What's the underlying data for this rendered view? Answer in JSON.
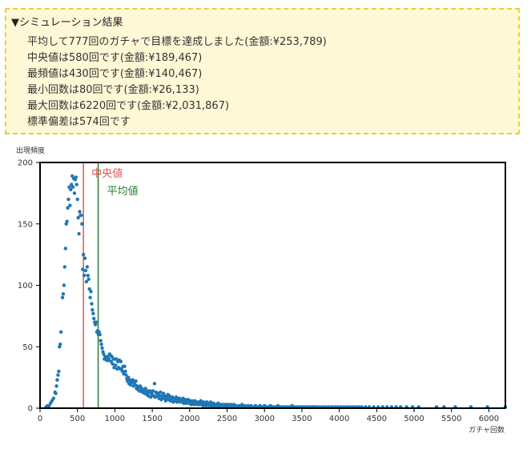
{
  "summary": {
    "title": "▼シミュレーション結果",
    "lines": [
      "平均して777回のガチャで目標を達成しました(金額:¥253,789)",
      "中央値は580回です(金額:¥189,467)",
      "最頻値は430回です(金額:¥140,467)",
      "最小回数は80回です(金額:¥26,133)",
      "最大回数は6220回です(金額:¥2,031,867)",
      "標準偏差は574回です"
    ]
  },
  "chart_data": {
    "type": "scatter",
    "title": "",
    "xlabel": "ガチャ回数",
    "ylabel": "出現頻度",
    "xlim": [
      0,
      6220
    ],
    "ylim": [
      0,
      200
    ],
    "xticks": [
      0,
      500,
      1000,
      1500,
      2000,
      2500,
      3000,
      3500,
      4000,
      4500,
      5000,
      5500,
      6000
    ],
    "yticks": [
      0,
      50,
      100,
      150,
      200
    ],
    "colors": {
      "points": "#1f77b4",
      "median": "#e0565b",
      "mean": "#2e7d32"
    },
    "reference_lines": [
      {
        "label": "中央値",
        "x": 580,
        "color": "#e0565b"
      },
      {
        "label": "平均値",
        "x": 777,
        "color": "#2e7d32"
      }
    ],
    "series": [
      {
        "points": [
          [
            80,
            1
          ],
          [
            100,
            2
          ],
          [
            120,
            2
          ],
          [
            140,
            4
          ],
          [
            160,
            6
          ],
          [
            180,
            8
          ],
          [
            200,
            13
          ],
          [
            210,
            12
          ],
          [
            220,
            18
          ],
          [
            230,
            23
          ],
          [
            240,
            27
          ],
          [
            250,
            30
          ],
          [
            260,
            50
          ],
          [
            270,
            52
          ],
          [
            280,
            62
          ],
          [
            300,
            90
          ],
          [
            310,
            93
          ],
          [
            320,
            100
          ],
          [
            330,
            115
          ],
          [
            340,
            130
          ],
          [
            350,
            150
          ],
          [
            360,
            152
          ],
          [
            370,
            163
          ],
          [
            380,
            170
          ],
          [
            390,
            180
          ],
          [
            400,
            165
          ],
          [
            410,
            178
          ],
          [
            420,
            182
          ],
          [
            430,
            189
          ],
          [
            440,
            180
          ],
          [
            450,
            187
          ],
          [
            460,
            175
          ],
          [
            470,
            186
          ],
          [
            480,
            188
          ],
          [
            490,
            182
          ],
          [
            500,
            170
          ],
          [
            510,
            155
          ],
          [
            520,
            142
          ],
          [
            530,
            160
          ],
          [
            540,
            157
          ],
          [
            550,
            157
          ],
          [
            560,
            150
          ],
          [
            570,
            113
          ],
          [
            580,
            125
          ],
          [
            590,
            108
          ],
          [
            600,
            122
          ],
          [
            610,
            112
          ],
          [
            620,
            103
          ],
          [
            630,
            115
          ],
          [
            640,
            108
          ],
          [
            650,
            105
          ],
          [
            660,
            97
          ],
          [
            670,
            90
          ],
          [
            680,
            95
          ],
          [
            690,
            85
          ],
          [
            700,
            80
          ],
          [
            710,
            77
          ],
          [
            720,
            73
          ],
          [
            730,
            70
          ],
          [
            740,
            68
          ],
          [
            750,
            70
          ],
          [
            760,
            62
          ],
          [
            770,
            63
          ],
          [
            780,
            60
          ],
          [
            790,
            62
          ],
          [
            800,
            60
          ],
          [
            810,
            55
          ],
          [
            820,
            52
          ],
          [
            830,
            49
          ],
          [
            840,
            46
          ],
          [
            850,
            44
          ],
          [
            860,
            40
          ],
          [
            870,
            42
          ],
          [
            880,
            40
          ],
          [
            890,
            39
          ],
          [
            900,
            42
          ],
          [
            910,
            39
          ],
          [
            920,
            40
          ],
          [
            930,
            44
          ],
          [
            940,
            43
          ],
          [
            950,
            38
          ],
          [
            960,
            42
          ],
          [
            970,
            36
          ],
          [
            980,
            40
          ],
          [
            990,
            33
          ],
          [
            1000,
            40
          ],
          [
            1010,
            35
          ],
          [
            1020,
            40
          ],
          [
            1030,
            32
          ],
          [
            1040,
            38
          ],
          [
            1050,
            33
          ],
          [
            1060,
            39
          ],
          [
            1070,
            32
          ],
          [
            1080,
            38
          ],
          [
            1090,
            32
          ],
          [
            1100,
            30
          ],
          [
            1110,
            34
          ],
          [
            1120,
            28
          ],
          [
            1130,
            34
          ],
          [
            1140,
            30
          ],
          [
            1150,
            27
          ],
          [
            1160,
            24
          ],
          [
            1170,
            22
          ],
          [
            1180,
            25
          ],
          [
            1190,
            20
          ],
          [
            1200,
            23
          ],
          [
            1210,
            19
          ],
          [
            1220,
            22
          ],
          [
            1230,
            21
          ],
          [
            1240,
            23
          ],
          [
            1250,
            18
          ],
          [
            1260,
            21
          ],
          [
            1270,
            19
          ],
          [
            1280,
            22
          ],
          [
            1290,
            16
          ],
          [
            1300,
            18
          ],
          [
            1310,
            15
          ],
          [
            1320,
            17
          ],
          [
            1330,
            14
          ],
          [
            1340,
            18
          ],
          [
            1350,
            14
          ],
          [
            1360,
            16
          ],
          [
            1370,
            13
          ],
          [
            1380,
            15
          ],
          [
            1390,
            14
          ],
          [
            1400,
            12
          ],
          [
            1410,
            16
          ],
          [
            1420,
            13
          ],
          [
            1430,
            11
          ],
          [
            1440,
            14
          ],
          [
            1450,
            10
          ],
          [
            1460,
            13
          ],
          [
            1470,
            14
          ],
          [
            1480,
            9
          ],
          [
            1490,
            12
          ],
          [
            1500,
            11
          ],
          [
            1510,
            14
          ],
          [
            1520,
            10
          ],
          [
            1530,
            20
          ],
          [
            1540,
            9
          ],
          [
            1550,
            13
          ],
          [
            1560,
            12
          ],
          [
            1570,
            10
          ],
          [
            1580,
            12
          ],
          [
            1590,
            8
          ],
          [
            1600,
            10
          ],
          [
            1610,
            13
          ],
          [
            1620,
            7
          ],
          [
            1630,
            10
          ],
          [
            1640,
            9
          ],
          [
            1650,
            12
          ],
          [
            1660,
            8
          ],
          [
            1670,
            10
          ],
          [
            1680,
            6
          ],
          [
            1690,
            9
          ],
          [
            1700,
            8
          ],
          [
            1710,
            11
          ],
          [
            1720,
            7
          ],
          [
            1730,
            10
          ],
          [
            1740,
            6
          ],
          [
            1750,
            8
          ],
          [
            1760,
            7
          ],
          [
            1770,
            9
          ],
          [
            1780,
            5
          ],
          [
            1790,
            8
          ],
          [
            1800,
            7
          ],
          [
            1810,
            6
          ],
          [
            1820,
            9
          ],
          [
            1830,
            5
          ],
          [
            1840,
            7
          ],
          [
            1850,
            6
          ],
          [
            1860,
            8
          ],
          [
            1870,
            5
          ],
          [
            1880,
            7
          ],
          [
            1890,
            6
          ],
          [
            1900,
            5
          ],
          [
            1910,
            8
          ],
          [
            1920,
            4
          ],
          [
            1930,
            6
          ],
          [
            1940,
            7
          ],
          [
            1950,
            4
          ],
          [
            1960,
            6
          ],
          [
            1970,
            5
          ],
          [
            1980,
            7
          ],
          [
            1990,
            4
          ],
          [
            2000,
            6
          ],
          [
            2010,
            5
          ],
          [
            2020,
            3
          ],
          [
            2030,
            6
          ],
          [
            2040,
            4
          ],
          [
            2050,
            5
          ],
          [
            2060,
            3
          ],
          [
            2070,
            6
          ],
          [
            2080,
            4
          ],
          [
            2090,
            5
          ],
          [
            2100,
            3
          ],
          [
            2110,
            4
          ],
          [
            2120,
            5
          ],
          [
            2130,
            3
          ],
          [
            2140,
            4
          ],
          [
            2150,
            6
          ],
          [
            2160,
            3
          ],
          [
            2170,
            4
          ],
          [
            2180,
            2
          ],
          [
            2190,
            5
          ],
          [
            2200,
            3
          ],
          [
            2210,
            4
          ],
          [
            2220,
            2
          ],
          [
            2230,
            5
          ],
          [
            2240,
            3
          ],
          [
            2250,
            4
          ],
          [
            2260,
            2
          ],
          [
            2270,
            3
          ],
          [
            2280,
            5
          ],
          [
            2290,
            2
          ],
          [
            2300,
            3
          ],
          [
            2310,
            2
          ],
          [
            2320,
            4
          ],
          [
            2330,
            2
          ],
          [
            2340,
            3
          ],
          [
            2350,
            1
          ],
          [
            2360,
            3
          ],
          [
            2370,
            2
          ],
          [
            2380,
            4
          ],
          [
            2390,
            1
          ],
          [
            2400,
            3
          ],
          [
            2410,
            2
          ],
          [
            2420,
            3
          ],
          [
            2430,
            1
          ],
          [
            2440,
            2
          ],
          [
            2450,
            3
          ],
          [
            2460,
            1
          ],
          [
            2470,
            2
          ],
          [
            2480,
            3
          ],
          [
            2490,
            1
          ],
          [
            2500,
            2
          ],
          [
            2510,
            3
          ],
          [
            2520,
            1
          ],
          [
            2530,
            2
          ],
          [
            2540,
            1
          ],
          [
            2550,
            3
          ],
          [
            2560,
            2
          ],
          [
            2570,
            1
          ],
          [
            2580,
            2
          ],
          [
            2590,
            3
          ],
          [
            2600,
            1
          ],
          [
            2620,
            2
          ],
          [
            2640,
            1
          ],
          [
            2660,
            2
          ],
          [
            2680,
            1
          ],
          [
            2700,
            3
          ],
          [
            2720,
            1
          ],
          [
            2740,
            2
          ],
          [
            2760,
            1
          ],
          [
            2780,
            2
          ],
          [
            2800,
            1
          ],
          [
            2820,
            2
          ],
          [
            2840,
            1
          ],
          [
            2860,
            1
          ],
          [
            2880,
            2
          ],
          [
            2900,
            1
          ],
          [
            2920,
            1
          ],
          [
            2940,
            2
          ],
          [
            2960,
            1
          ],
          [
            2980,
            1
          ],
          [
            3000,
            2
          ],
          [
            3020,
            1
          ],
          [
            3040,
            1
          ],
          [
            3060,
            1
          ],
          [
            3080,
            2
          ],
          [
            3100,
            1
          ],
          [
            3120,
            1
          ],
          [
            3140,
            1
          ],
          [
            3160,
            1
          ],
          [
            3180,
            2
          ],
          [
            3200,
            1
          ],
          [
            3220,
            1
          ],
          [
            3250,
            1
          ],
          [
            3280,
            1
          ],
          [
            3310,
            1
          ],
          [
            3340,
            1
          ],
          [
            3370,
            2
          ],
          [
            3400,
            1
          ],
          [
            3430,
            1
          ],
          [
            3460,
            1
          ],
          [
            3490,
            1
          ],
          [
            3520,
            1
          ],
          [
            3550,
            1
          ],
          [
            3580,
            1
          ],
          [
            3610,
            1
          ],
          [
            3640,
            1
          ],
          [
            3670,
            1
          ],
          [
            3700,
            1
          ],
          [
            3740,
            1
          ],
          [
            3780,
            1
          ],
          [
            3820,
            1
          ],
          [
            3860,
            1
          ],
          [
            3900,
            1
          ],
          [
            3940,
            1
          ],
          [
            3980,
            1
          ],
          [
            4020,
            1
          ],
          [
            4060,
            1
          ],
          [
            4100,
            1
          ],
          [
            4140,
            1
          ],
          [
            4180,
            1
          ],
          [
            4220,
            1
          ],
          [
            4260,
            1
          ],
          [
            4300,
            1
          ],
          [
            4350,
            1
          ],
          [
            4400,
            1
          ],
          [
            4460,
            1
          ],
          [
            4520,
            1
          ],
          [
            4580,
            1
          ],
          [
            4640,
            1
          ],
          [
            4700,
            1
          ],
          [
            4760,
            1
          ],
          [
            4820,
            1
          ],
          [
            4900,
            1
          ],
          [
            4980,
            1
          ],
          [
            5060,
            1
          ],
          [
            5300,
            1
          ],
          [
            5400,
            1
          ],
          [
            5550,
            1
          ],
          [
            5760,
            1
          ],
          [
            5980,
            1
          ],
          [
            6220,
            1
          ]
        ]
      }
    ]
  }
}
